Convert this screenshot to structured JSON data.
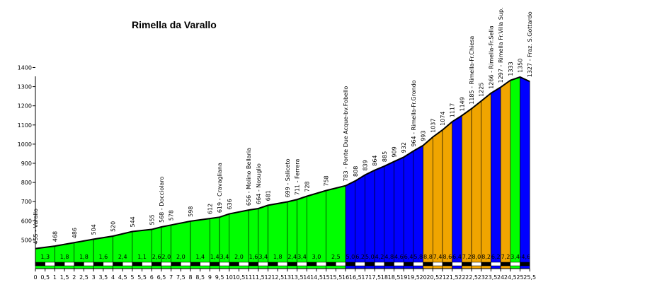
{
  "chart_data": {
    "type": "area",
    "title": "Rimella da Varallo",
    "xlabel": "",
    "ylabel": "",
    "ylim": [
      430,
      1400
    ],
    "xlim": [
      0,
      25.5
    ],
    "y_ticks": [
      500,
      600,
      700,
      800,
      900,
      1000,
      1100,
      1200,
      1300,
      1400
    ],
    "x_ticks": [
      "0",
      "0,5",
      "1",
      "1,5",
      "2",
      "2,5",
      "3",
      "3,5",
      "4",
      "4,5",
      "5",
      "5,5",
      "6",
      "6,5",
      "7",
      "7,5",
      "8",
      "8,5",
      "9",
      "9,5",
      "10",
      "10,5",
      "11",
      "11,5",
      "12",
      "12,5",
      "13",
      "13,5",
      "14",
      "14,5",
      "15",
      "15,5",
      "16",
      "16,5",
      "17",
      "17,5",
      "18",
      "18,5",
      "19",
      "19,5",
      "20",
      "20,5",
      "21",
      "21,5",
      "22",
      "22,5",
      "23",
      "23,5",
      "24",
      "24,5",
      "25",
      "25,5"
    ],
    "grid": false,
    "colors": {
      "green": "#00ff00",
      "blue": "#0000ff",
      "orange": "#f0a500",
      "profile_line": "#000000",
      "road_black": "#000000",
      "road_white": "#ffffff"
    },
    "altitude_labels": [
      {
        "x": 0,
        "y": 455,
        "text": "455 - Varallo"
      },
      {
        "x": 1,
        "y": 468,
        "text": "468"
      },
      {
        "x": 2,
        "y": 486,
        "text": "486"
      },
      {
        "x": 3,
        "y": 504,
        "text": "504"
      },
      {
        "x": 4,
        "y": 520,
        "text": "520"
      },
      {
        "x": 5,
        "y": 544,
        "text": "544"
      },
      {
        "x": 6,
        "y": 555,
        "text": "555"
      },
      {
        "x": 6.5,
        "y": 568,
        "text": "568 - Docciolaro"
      },
      {
        "x": 7,
        "y": 578,
        "text": "578"
      },
      {
        "x": 8,
        "y": 598,
        "text": "598"
      },
      {
        "x": 9,
        "y": 612,
        "text": "612"
      },
      {
        "x": 9.5,
        "y": 619,
        "text": "619 - Cravagliana"
      },
      {
        "x": 10,
        "y": 636,
        "text": "636"
      },
      {
        "x": 11,
        "y": 656,
        "text": "656 - Molino Bellaria"
      },
      {
        "x": 11.5,
        "y": 664,
        "text": "664 - Nosuglio"
      },
      {
        "x": 12,
        "y": 681,
        "text": "681"
      },
      {
        "x": 13,
        "y": 699,
        "text": "699 - Saliceto"
      },
      {
        "x": 13.5,
        "y": 711,
        "text": "711 - Ferrera"
      },
      {
        "x": 14,
        "y": 728,
        "text": "728"
      },
      {
        "x": 15,
        "y": 758,
        "text": "758"
      },
      {
        "x": 16,
        "y": 783,
        "text": "783 - Ponte Due Acque-bv.Fobello"
      },
      {
        "x": 16.5,
        "y": 808,
        "text": "808"
      },
      {
        "x": 17,
        "y": 839,
        "text": "839"
      },
      {
        "x": 17.5,
        "y": 864,
        "text": "864"
      },
      {
        "x": 18,
        "y": 885,
        "text": "885"
      },
      {
        "x": 18.5,
        "y": 909,
        "text": "909"
      },
      {
        "x": 19,
        "y": 932,
        "text": "932"
      },
      {
        "x": 19.5,
        "y": 964,
        "text": "964 - Rimella-Fr.Grondo"
      },
      {
        "x": 20,
        "y": 993,
        "text": "993"
      },
      {
        "x": 20.5,
        "y": 1037,
        "text": "1037"
      },
      {
        "x": 21,
        "y": 1074,
        "text": "1074"
      },
      {
        "x": 21.5,
        "y": 1117,
        "text": "1117"
      },
      {
        "x": 22,
        "y": 1149,
        "text": "1149"
      },
      {
        "x": 22.5,
        "y": 1185,
        "text": "1185 - Rimella-Fr.Chiesa"
      },
      {
        "x": 23,
        "y": 1225,
        "text": "1225"
      },
      {
        "x": 23.5,
        "y": 1266,
        "text": "1266 - Rimella-Fr.Sella"
      },
      {
        "x": 24,
        "y": 1297,
        "text": "1297 - Rimella Fr.Villa Sup."
      },
      {
        "x": 24.5,
        "y": 1333,
        "text": "1333"
      },
      {
        "x": 25,
        "y": 1350,
        "text": "1350"
      },
      {
        "x": 25.5,
        "y": 1327,
        "text": "1327 - Fraz. S.Gottardo"
      }
    ],
    "segments": [
      {
        "x0": 0,
        "x1": 1,
        "y0": 455,
        "y1": 468,
        "grad": "1,3",
        "color": "green"
      },
      {
        "x0": 1,
        "x1": 2,
        "y0": 468,
        "y1": 486,
        "grad": "1,8",
        "color": "green"
      },
      {
        "x0": 2,
        "x1": 3,
        "y0": 486,
        "y1": 504,
        "grad": "1,8",
        "color": "green"
      },
      {
        "x0": 3,
        "x1": 4,
        "y0": 504,
        "y1": 520,
        "grad": "1,6",
        "color": "green"
      },
      {
        "x0": 4,
        "x1": 5,
        "y0": 520,
        "y1": 544,
        "grad": "2,4",
        "color": "green"
      },
      {
        "x0": 5,
        "x1": 6,
        "y0": 544,
        "y1": 555,
        "grad": "1,1",
        "color": "green"
      },
      {
        "x0": 6,
        "x1": 6.5,
        "y0": 555,
        "y1": 568,
        "grad": "2,6",
        "color": "green"
      },
      {
        "x0": 6.5,
        "x1": 7,
        "y0": 568,
        "y1": 578,
        "grad": "2,0",
        "color": "green"
      },
      {
        "x0": 7,
        "x1": 8,
        "y0": 578,
        "y1": 598,
        "grad": "2,0",
        "color": "green"
      },
      {
        "x0": 8,
        "x1": 9,
        "y0": 598,
        "y1": 612,
        "grad": "1,4",
        "color": "green"
      },
      {
        "x0": 9,
        "x1": 9.5,
        "y0": 612,
        "y1": 619,
        "grad": "1,4",
        "color": "green"
      },
      {
        "x0": 9.5,
        "x1": 10,
        "y0": 619,
        "y1": 636,
        "grad": "3,4",
        "color": "green"
      },
      {
        "x0": 10,
        "x1": 11,
        "y0": 636,
        "y1": 656,
        "grad": "2,0",
        "color": "green"
      },
      {
        "x0": 11,
        "x1": 11.5,
        "y0": 656,
        "y1": 664,
        "grad": "1,6",
        "color": "green"
      },
      {
        "x0": 11.5,
        "x1": 12,
        "y0": 664,
        "y1": 681,
        "grad": "3,4",
        "color": "green"
      },
      {
        "x0": 12,
        "x1": 13,
        "y0": 681,
        "y1": 699,
        "grad": "1,8",
        "color": "green"
      },
      {
        "x0": 13,
        "x1": 13.5,
        "y0": 699,
        "y1": 711,
        "grad": "2,4",
        "color": "green"
      },
      {
        "x0": 13.5,
        "x1": 14,
        "y0": 711,
        "y1": 728,
        "grad": "3,4",
        "color": "green"
      },
      {
        "x0": 14,
        "x1": 15,
        "y0": 728,
        "y1": 758,
        "grad": "3,0",
        "color": "green"
      },
      {
        "x0": 15,
        "x1": 16,
        "y0": 758,
        "y1": 783,
        "grad": "2,5",
        "color": "green"
      },
      {
        "x0": 16,
        "x1": 16.5,
        "y0": 783,
        "y1": 808,
        "grad": "5,0",
        "color": "blue"
      },
      {
        "x0": 16.5,
        "x1": 17,
        "y0": 808,
        "y1": 839,
        "grad": "6,2",
        "color": "blue"
      },
      {
        "x0": 17,
        "x1": 17.5,
        "y0": 839,
        "y1": 864,
        "grad": "5,0",
        "color": "blue"
      },
      {
        "x0": 17.5,
        "x1": 18,
        "y0": 864,
        "y1": 885,
        "grad": "4,2",
        "color": "blue"
      },
      {
        "x0": 18,
        "x1": 18.5,
        "y0": 885,
        "y1": 909,
        "grad": "4,8",
        "color": "blue"
      },
      {
        "x0": 18.5,
        "x1": 19,
        "y0": 909,
        "y1": 932,
        "grad": "4,6",
        "color": "blue"
      },
      {
        "x0": 19,
        "x1": 19.5,
        "y0": 932,
        "y1": 964,
        "grad": "6,4",
        "color": "blue"
      },
      {
        "x0": 19.5,
        "x1": 20,
        "y0": 964,
        "y1": 993,
        "grad": "5,8",
        "color": "blue"
      },
      {
        "x0": 20,
        "x1": 20.5,
        "y0": 993,
        "y1": 1037,
        "grad": "8,8",
        "color": "orange"
      },
      {
        "x0": 20.5,
        "x1": 21,
        "y0": 1037,
        "y1": 1074,
        "grad": "7,4",
        "color": "orange"
      },
      {
        "x0": 21,
        "x1": 21.5,
        "y0": 1074,
        "y1": 1117,
        "grad": "8,6",
        "color": "orange"
      },
      {
        "x0": 21.5,
        "x1": 22,
        "y0": 1117,
        "y1": 1149,
        "grad": "6,4",
        "color": "blue"
      },
      {
        "x0": 22,
        "x1": 22.5,
        "y0": 1149,
        "y1": 1185,
        "grad": "7,2",
        "color": "orange"
      },
      {
        "x0": 22.5,
        "x1": 23,
        "y0": 1185,
        "y1": 1225,
        "grad": "8,0",
        "color": "orange"
      },
      {
        "x0": 23,
        "x1": 23.5,
        "y0": 1225,
        "y1": 1266,
        "grad": "8,2",
        "color": "orange"
      },
      {
        "x0": 23.5,
        "x1": 24,
        "y0": 1266,
        "y1": 1297,
        "grad": "6,2",
        "color": "blue"
      },
      {
        "x0": 24,
        "x1": 24.5,
        "y0": 1297,
        "y1": 1333,
        "grad": "7,2",
        "color": "orange"
      },
      {
        "x0": 24.5,
        "x1": 25,
        "y0": 1333,
        "y1": 1350,
        "grad": "3,4",
        "color": "green"
      },
      {
        "x0": 25,
        "x1": 25.5,
        "y0": 1350,
        "y1": 1327,
        "grad": "-4,6",
        "color": "blue"
      }
    ]
  }
}
